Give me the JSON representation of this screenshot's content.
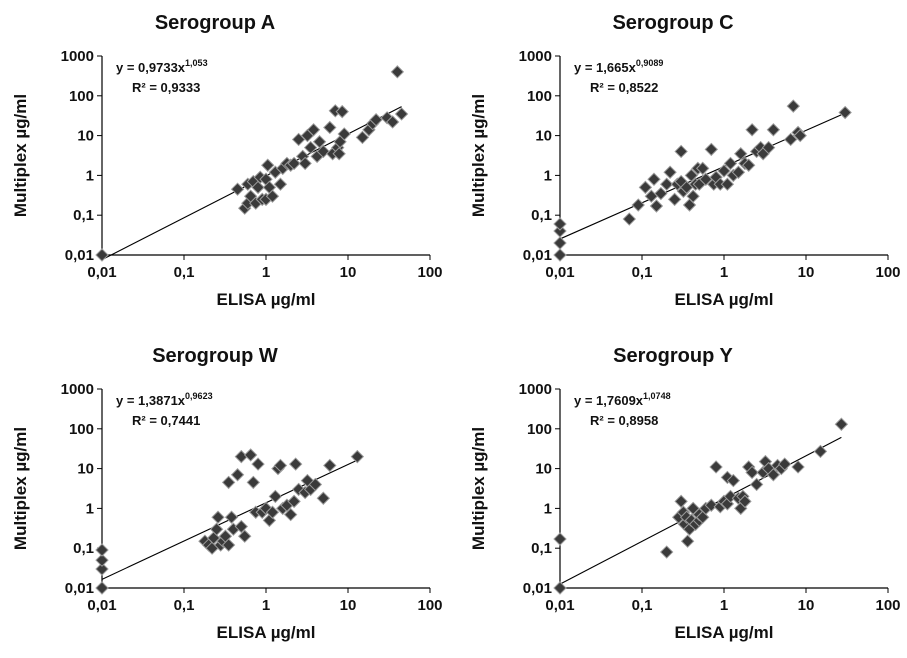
{
  "chart_data": [
    {
      "type": "scatter",
      "title": "Serogroup A",
      "xlabel": "ELISA µg/ml",
      "ylabel": "Multiplex µg/ml",
      "x_scale": "log",
      "y_scale": "log",
      "xlim": [
        0.01,
        100
      ],
      "ylim": [
        0.01,
        1000
      ],
      "xticks": [
        "0,01",
        "0,1",
        "1",
        "10",
        "100"
      ],
      "yticks": [
        "0,01",
        "0,1",
        "1",
        "10",
        "100",
        "1000"
      ],
      "grid": false,
      "equation": {
        "main": "y = 0,9733x",
        "exp": "1,053"
      },
      "r2": "R² = 0,9333",
      "trend": {
        "a": 0.9733,
        "b": 1.053,
        "x_from": 0.01,
        "x_to": 45
      },
      "points": [
        [
          0.01,
          0.01
        ],
        [
          0.45,
          0.45
        ],
        [
          0.55,
          0.15
        ],
        [
          0.6,
          0.2
        ],
        [
          0.6,
          0.6
        ],
        [
          0.65,
          0.3
        ],
        [
          0.7,
          0.7
        ],
        [
          0.75,
          0.2
        ],
        [
          0.8,
          0.5
        ],
        [
          0.85,
          0.9
        ],
        [
          0.9,
          0.25
        ],
        [
          1.0,
          0.8
        ],
        [
          1.0,
          0.25
        ],
        [
          1.05,
          1.8
        ],
        [
          1.1,
          0.5
        ],
        [
          1.2,
          0.3
        ],
        [
          1.3,
          1.2
        ],
        [
          1.5,
          0.6
        ],
        [
          1.6,
          1.5
        ],
        [
          1.8,
          2
        ],
        [
          2.0,
          1.8
        ],
        [
          2.2,
          2
        ],
        [
          2.5,
          8
        ],
        [
          2.8,
          3
        ],
        [
          3.0,
          2
        ],
        [
          3.2,
          10
        ],
        [
          3.5,
          5
        ],
        [
          3.8,
          14
        ],
        [
          4.2,
          3
        ],
        [
          4.5,
          7
        ],
        [
          5.0,
          4
        ],
        [
          6.0,
          16
        ],
        [
          6.5,
          3.5
        ],
        [
          7.0,
          42
        ],
        [
          7.5,
          5
        ],
        [
          7.8,
          3.5
        ],
        [
          8.0,
          7
        ],
        [
          8.5,
          40
        ],
        [
          9.0,
          11
        ],
        [
          15,
          9
        ],
        [
          18,
          14
        ],
        [
          20,
          20
        ],
        [
          22,
          25
        ],
        [
          30,
          28
        ],
        [
          35,
          22
        ],
        [
          40,
          400
        ],
        [
          45,
          35
        ]
      ]
    },
    {
      "type": "scatter",
      "title": "Serogroup C",
      "xlabel": "ELISA µg/ml",
      "ylabel": "Multiplex µg/ml",
      "x_scale": "log",
      "y_scale": "log",
      "xlim": [
        0.01,
        100
      ],
      "ylim": [
        0.01,
        1000
      ],
      "xticks": [
        "0,01",
        "0,1",
        "1",
        "10",
        "100"
      ],
      "yticks": [
        "0,01",
        "0,1",
        "1",
        "10",
        "100",
        "1000"
      ],
      "grid": false,
      "equation": {
        "main": "y = 1,665x",
        "exp": "0,9089"
      },
      "r2": "R² = 0,8522",
      "trend": {
        "a": 1.665,
        "b": 0.9089,
        "x_from": 0.01,
        "x_to": 30
      },
      "points": [
        [
          0.01,
          0.01
        ],
        [
          0.01,
          0.02
        ],
        [
          0.01,
          0.04
        ],
        [
          0.01,
          0.06
        ],
        [
          0.07,
          0.08
        ],
        [
          0.09,
          0.18
        ],
        [
          0.11,
          0.5
        ],
        [
          0.13,
          0.3
        ],
        [
          0.14,
          0.8
        ],
        [
          0.15,
          0.17
        ],
        [
          0.17,
          0.35
        ],
        [
          0.2,
          0.6
        ],
        [
          0.22,
          1.2
        ],
        [
          0.25,
          0.25
        ],
        [
          0.27,
          0.6
        ],
        [
          0.3,
          0.7
        ],
        [
          0.3,
          4
        ],
        [
          0.32,
          0.4
        ],
        [
          0.35,
          0.5
        ],
        [
          0.38,
          0.18
        ],
        [
          0.4,
          1
        ],
        [
          0.42,
          0.3
        ],
        [
          0.45,
          0.6
        ],
        [
          0.48,
          1.5
        ],
        [
          0.5,
          0.6
        ],
        [
          0.55,
          1.5
        ],
        [
          0.6,
          0.8
        ],
        [
          0.7,
          4.5
        ],
        [
          0.75,
          0.6
        ],
        [
          0.8,
          0.9
        ],
        [
          0.9,
          0.6
        ],
        [
          1.0,
          1.3
        ],
        [
          1.1,
          0.6
        ],
        [
          1.2,
          2
        ],
        [
          1.3,
          1
        ],
        [
          1.5,
          1.2
        ],
        [
          1.6,
          3.5
        ],
        [
          1.8,
          2
        ],
        [
          2.0,
          1.8
        ],
        [
          2.2,
          14
        ],
        [
          2.5,
          4
        ],
        [
          2.8,
          5
        ],
        [
          3.0,
          3.5
        ],
        [
          3.5,
          5
        ],
        [
          4.0,
          14
        ],
        [
          6.5,
          8
        ],
        [
          7.0,
          55
        ],
        [
          8.0,
          12
        ],
        [
          8.5,
          10
        ],
        [
          30,
          38
        ]
      ]
    },
    {
      "type": "scatter",
      "title": "Serogroup W",
      "xlabel": "ELISA µg/ml",
      "ylabel": "Multiplex µg/ml",
      "x_scale": "log",
      "y_scale": "log",
      "xlim": [
        0.01,
        100
      ],
      "ylim": [
        0.01,
        1000
      ],
      "xticks": [
        "0,01",
        "0,1",
        "1",
        "10",
        "100"
      ],
      "yticks": [
        "0,01",
        "0,1",
        "1",
        "10",
        "100",
        "1000"
      ],
      "grid": false,
      "equation": {
        "main": "y = 1,3871x",
        "exp": "0,9623"
      },
      "r2": "R² = 0,7441",
      "trend": {
        "a": 1.3871,
        "b": 0.9623,
        "x_from": 0.01,
        "x_to": 13
      },
      "points": [
        [
          0.01,
          0.01
        ],
        [
          0.01,
          0.03
        ],
        [
          0.01,
          0.05
        ],
        [
          0.01,
          0.09
        ],
        [
          0.18,
          0.15
        ],
        [
          0.2,
          0.12
        ],
        [
          0.22,
          0.1
        ],
        [
          0.23,
          0.18
        ],
        [
          0.25,
          0.3
        ],
        [
          0.26,
          0.6
        ],
        [
          0.28,
          0.12
        ],
        [
          0.3,
          0.15
        ],
        [
          0.32,
          0.2
        ],
        [
          0.35,
          0.12
        ],
        [
          0.35,
          4.5
        ],
        [
          0.38,
          0.6
        ],
        [
          0.4,
          0.3
        ],
        [
          0.45,
          7
        ],
        [
          0.5,
          0.35
        ],
        [
          0.5,
          20
        ],
        [
          0.55,
          0.2
        ],
        [
          0.65,
          22
        ],
        [
          0.7,
          4.5
        ],
        [
          0.75,
          0.8
        ],
        [
          0.8,
          13
        ],
        [
          0.9,
          0.8
        ],
        [
          1.0,
          1
        ],
        [
          1.1,
          0.5
        ],
        [
          1.2,
          0.8
        ],
        [
          1.3,
          2
        ],
        [
          1.4,
          10
        ],
        [
          1.5,
          12
        ],
        [
          1.6,
          1
        ],
        [
          1.8,
          1.2
        ],
        [
          2.0,
          0.7
        ],
        [
          2.2,
          1.5
        ],
        [
          2.3,
          13
        ],
        [
          2.5,
          3
        ],
        [
          3.0,
          2.5
        ],
        [
          3.2,
          5
        ],
        [
          3.5,
          3
        ],
        [
          4.0,
          4
        ],
        [
          5.0,
          1.8
        ],
        [
          6.0,
          12
        ],
        [
          13,
          20
        ]
      ]
    },
    {
      "type": "scatter",
      "title": "Serogroup Y",
      "xlabel": "ELISA µg/ml",
      "ylabel": "Multiplex µg/ml",
      "x_scale": "log",
      "y_scale": "log",
      "xlim": [
        0.01,
        100
      ],
      "ylim": [
        0.01,
        1000
      ],
      "xticks": [
        "0,01",
        "0,1",
        "1",
        "10",
        "100"
      ],
      "yticks": [
        "0,01",
        "0,1",
        "1",
        "10",
        "100",
        "1000"
      ],
      "grid": false,
      "equation": {
        "main": "y = 1,7609x",
        "exp": "1,0748"
      },
      "r2": "R² = 0,8958",
      "trend": {
        "a": 1.7609,
        "b": 1.0748,
        "x_from": 0.01,
        "x_to": 27
      },
      "points": [
        [
          0.01,
          0.01
        ],
        [
          0.01,
          0.17
        ],
        [
          0.2,
          0.08
        ],
        [
          0.28,
          0.6
        ],
        [
          0.3,
          1.5
        ],
        [
          0.32,
          0.8
        ],
        [
          0.33,
          0.4
        ],
        [
          0.35,
          0.6
        ],
        [
          0.36,
          0.15
        ],
        [
          0.38,
          0.3
        ],
        [
          0.4,
          0.5
        ],
        [
          0.42,
          1
        ],
        [
          0.45,
          0.4
        ],
        [
          0.5,
          0.5
        ],
        [
          0.5,
          0.7
        ],
        [
          0.55,
          0.6
        ],
        [
          0.6,
          1
        ],
        [
          0.7,
          1.2
        ],
        [
          0.8,
          11
        ],
        [
          0.9,
          1.1
        ],
        [
          1.0,
          1.5
        ],
        [
          1.1,
          1.3
        ],
        [
          1.1,
          6
        ],
        [
          1.2,
          2
        ],
        [
          1.3,
          5
        ],
        [
          1.5,
          1.8
        ],
        [
          1.6,
          1
        ],
        [
          1.7,
          2
        ],
        [
          1.8,
          1.5
        ],
        [
          2.0,
          11
        ],
        [
          2.2,
          8
        ],
        [
          2.5,
          4
        ],
        [
          3.0,
          8
        ],
        [
          3.2,
          15
        ],
        [
          3.5,
          10
        ],
        [
          4.0,
          7
        ],
        [
          4.5,
          12
        ],
        [
          5.0,
          10
        ],
        [
          5.5,
          13
        ],
        [
          8.0,
          11
        ],
        [
          15,
          27
        ],
        [
          27,
          130
        ]
      ]
    }
  ]
}
